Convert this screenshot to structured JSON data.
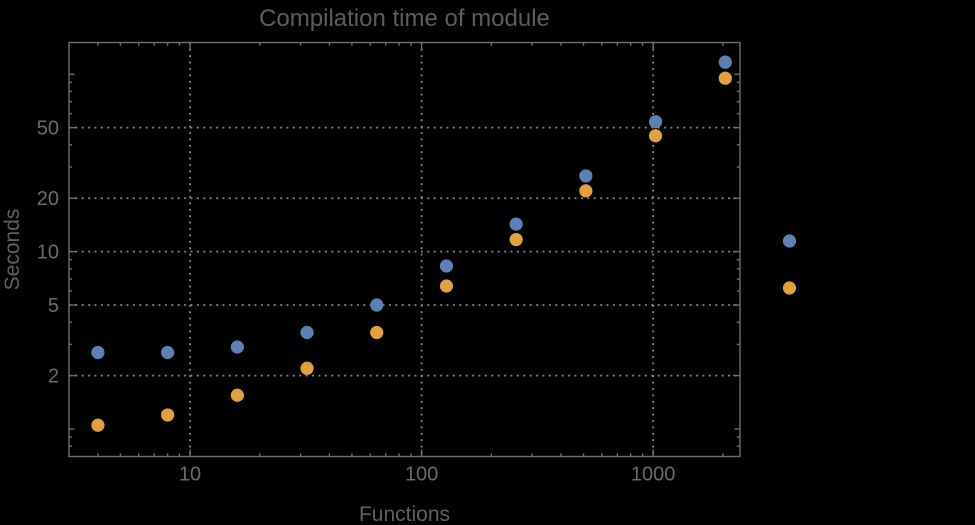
{
  "title": "Compilation time of module",
  "axes": {
    "xlabel": "Functions",
    "ylabel": "Seconds"
  },
  "colors": {
    "background": "#000000",
    "frame": "#6f6f6f",
    "grid": "#8d8d8d",
    "title_text": "#5d5d5d",
    "axis_label_text": "#616161",
    "tick_label_text": "#6b6b6b",
    "series1": "#5e81b5",
    "series2": "#e2a13b"
  },
  "chart_data": {
    "type": "scatter",
    "x_scale": "log",
    "y_scale": "log",
    "xlim": [
      3,
      2371
    ],
    "ylim": [
      0.7,
      151
    ],
    "grid": true,
    "title": "Compilation time of module",
    "xlabel": "Functions",
    "ylabel": "Seconds",
    "x_ticks": {
      "major": [
        10,
        100,
        1000
      ],
      "labels": [
        "10",
        "100",
        "1000"
      ],
      "medium": []
    },
    "y_ticks": {
      "major": [
        2,
        5,
        10,
        20,
        50
      ],
      "labels": [
        "2",
        "5",
        "10",
        "20",
        "50"
      ],
      "medium": [
        1,
        100
      ]
    },
    "series": [
      {
        "name": "blue-series",
        "color": "#5e81b5",
        "x": [
          4,
          8,
          16,
          32,
          64,
          128,
          256,
          512,
          1024,
          2048
        ],
        "y": [
          2.7,
          2.7,
          2.9,
          3.5,
          5.0,
          8.3,
          14.3,
          26.7,
          54,
          117
        ]
      },
      {
        "name": "orange-series",
        "color": "#e2a13b",
        "x": [
          4,
          8,
          16,
          32,
          64,
          128,
          256,
          512,
          1024,
          2048
        ],
        "y": [
          1.05,
          1.2,
          1.55,
          2.2,
          3.5,
          6.4,
          11.7,
          22,
          45,
          95
        ]
      }
    ],
    "legend": {
      "position": "right-of-frame",
      "entries": [
        {
          "marker_color": "#5e81b5",
          "label": ""
        },
        {
          "marker_color": "#e2a13b",
          "label": ""
        }
      ]
    }
  }
}
